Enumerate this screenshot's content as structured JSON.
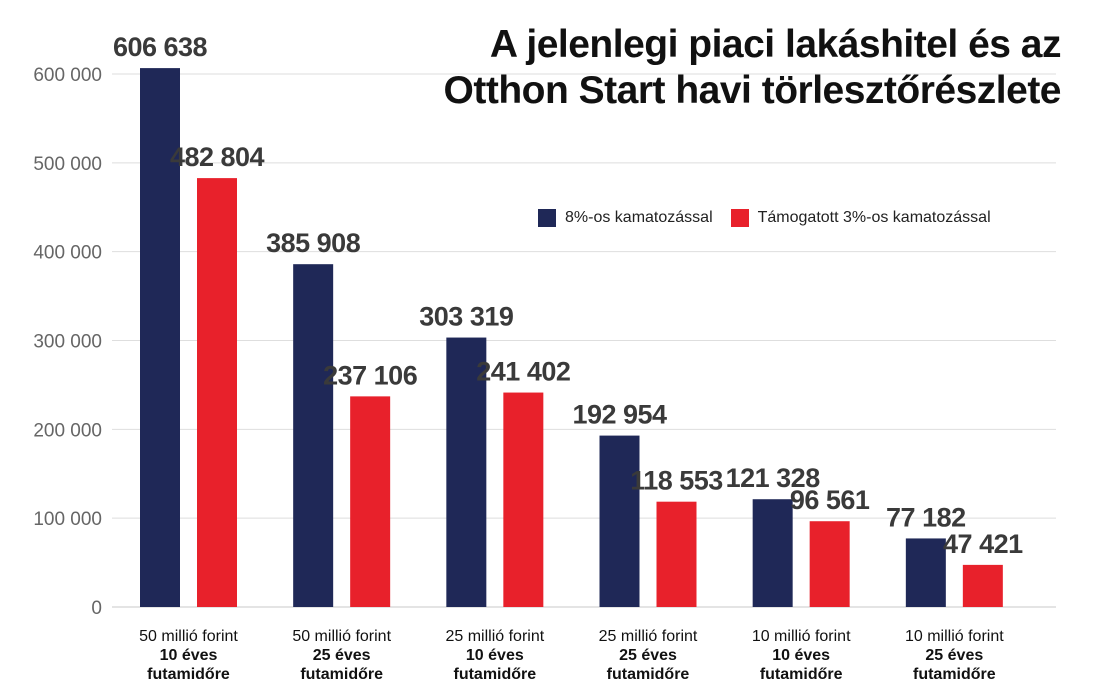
{
  "chart_data": {
    "type": "bar",
    "title_lines": [
      "A jelenlegi piaci lakáshitel és az",
      "Otthon Start havi törlesztőrészlete"
    ],
    "categories": [
      [
        "50 millió forint",
        "10 éves",
        "futamidőre"
      ],
      [
        "50 millió forint",
        "25 éves",
        "futamidőre"
      ],
      [
        "25 millió forint",
        "10 éves",
        "futamidőre"
      ],
      [
        "25 millió forint",
        "25 éves",
        "futamidőre"
      ],
      [
        "10 millió forint",
        "10 éves",
        "futamidőre"
      ],
      [
        "10 millió forint",
        "25 éves",
        "futamidőre"
      ]
    ],
    "series": [
      {
        "name": "8%-os kamatozással",
        "color": "#1f2857",
        "values": [
          606638,
          385908,
          303319,
          192954,
          121328,
          77182
        ],
        "labels": [
          "606 638",
          "385 908",
          "303 319",
          "192 954",
          "121 328",
          "77 182"
        ]
      },
      {
        "name": "Támogatott 3%-os kamatozással",
        "color": "#e8212b",
        "values": [
          482804,
          237106,
          241402,
          118553,
          96561,
          47421
        ],
        "labels": [
          "482 804",
          "237 106",
          "241 402",
          "118 553",
          "96 561",
          "47 421"
        ]
      }
    ],
    "ylim": [
      0,
      600000
    ],
    "yticks": [
      0,
      100000,
      200000,
      300000,
      400000,
      500000,
      600000
    ],
    "ytick_labels": [
      "0",
      "100 000",
      "200 000",
      "300 000",
      "400 000",
      "500 000",
      "600 000"
    ],
    "grid": true,
    "legend_position": "right"
  }
}
